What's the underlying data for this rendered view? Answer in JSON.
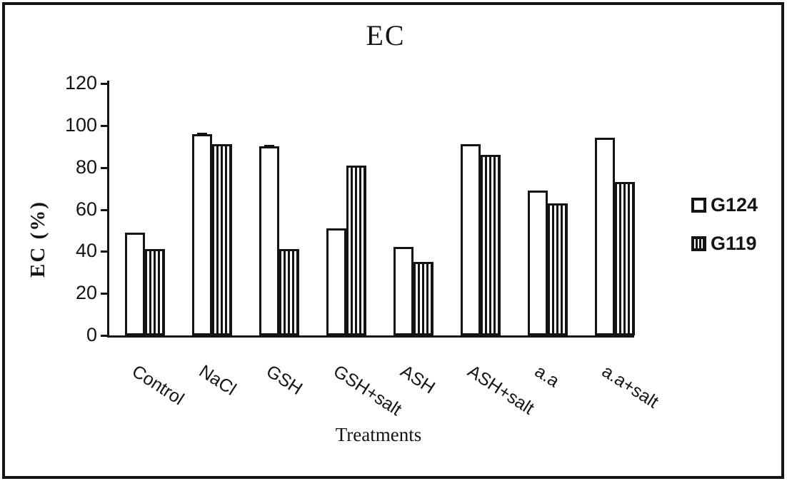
{
  "chart_data": {
    "type": "bar",
    "title": "EC",
    "xlabel": "Treatments",
    "ylabel": "EC (%)",
    "ylim": [
      0,
      120
    ],
    "yticks": [
      0,
      20,
      40,
      60,
      80,
      100,
      120
    ],
    "categories": [
      "Control",
      "NaCl",
      "GSH",
      "GSH+salt",
      "ASH",
      "ASH+salt",
      "a.a",
      "a.a+salt"
    ],
    "series": [
      {
        "name": "G124",
        "fill": "white",
        "values": [
          49,
          96,
          90,
          51,
          42,
          91,
          69,
          94
        ]
      },
      {
        "name": "G119",
        "fill": "striped",
        "values": [
          41,
          91,
          41,
          81,
          35,
          86,
          63,
          73
        ]
      }
    ],
    "error_caps": [
      {
        "category": "NaCl",
        "series": "G124"
      },
      {
        "category": "GSH",
        "series": "G124"
      }
    ],
    "legend_position": "right",
    "grid": false,
    "axis_color": "#141414",
    "bar_outline_color": "#141414",
    "background": "#ffffff"
  }
}
